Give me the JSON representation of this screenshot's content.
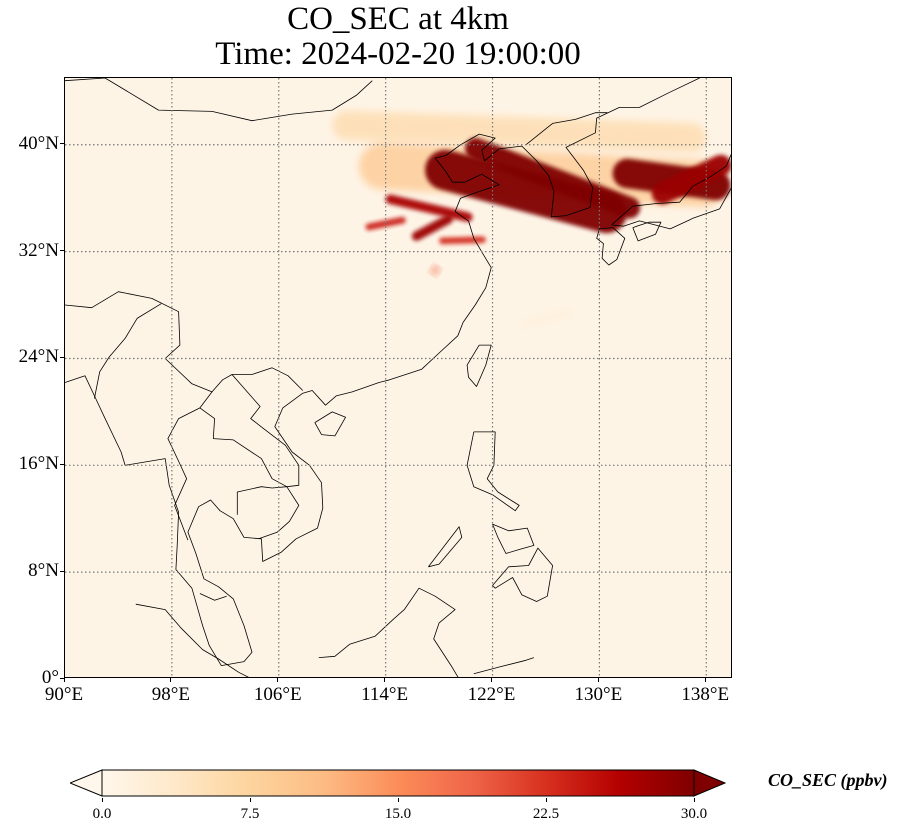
{
  "figure": {
    "title_line1": "CO_SEC at 4km",
    "title_line2": "Time: 2024-02-20 19:00:00"
  },
  "map": {
    "extent": {
      "lon_min": 90,
      "lon_max": 140,
      "lat_min": 0,
      "lat_max": 45
    },
    "gridlines": true,
    "lat_ticks": [
      {
        "value": 0,
        "label": "0°"
      },
      {
        "value": 8,
        "label": "8°N"
      },
      {
        "value": 16,
        "label": "16°N"
      },
      {
        "value": 24,
        "label": "24°N"
      },
      {
        "value": 32,
        "label": "32°N"
      },
      {
        "value": 40,
        "label": "40°N"
      }
    ],
    "lon_ticks": [
      {
        "value": 90,
        "label": "90°E"
      },
      {
        "value": 98,
        "label": "98°E"
      },
      {
        "value": 106,
        "label": "106°E"
      },
      {
        "value": 114,
        "label": "114°E"
      },
      {
        "value": 122,
        "label": "122°E"
      },
      {
        "value": 130,
        "label": "130°E"
      },
      {
        "value": 138,
        "label": "138°E"
      }
    ]
  },
  "colorbar": {
    "label": "CO_SEC (ppbv)",
    "ticks": [
      "0.0",
      "7.5",
      "15.0",
      "22.5",
      "30.0"
    ],
    "min": 0,
    "max": 30,
    "extend": "both",
    "colormap": "OrRd",
    "colors": [
      "#fff7ec",
      "#fee8c8",
      "#fdd49e",
      "#fdbb84",
      "#fc8d59",
      "#ef6548",
      "#d7301f",
      "#b30000",
      "#7f0000"
    ]
  },
  "plumes": [
    {
      "lon1": 110,
      "lat1": 41.5,
      "lon2": 138,
      "lat2": 40.5,
      "width": 2.2,
      "value": 6
    },
    {
      "lon1": 112,
      "lat1": 38.5,
      "lon2": 139.5,
      "lat2": 37,
      "width": 3.5,
      "value": 9
    },
    {
      "lon1": 117,
      "lat1": 38.5,
      "lon2": 132,
      "lat2": 34.5,
      "width": 3.0,
      "value": 30
    },
    {
      "lon1": 120,
      "lat1": 40,
      "lon2": 133,
      "lat2": 35,
      "width": 1.6,
      "value": 30
    },
    {
      "lon1": 131,
      "lat1": 38,
      "lon2": 139.8,
      "lat2": 36.8,
      "width": 2.2,
      "value": 30
    },
    {
      "lon1": 134,
      "lat1": 36,
      "lon2": 139.8,
      "lat2": 38.8,
      "width": 1.6,
      "value": 28
    },
    {
      "lon1": 114,
      "lat1": 36,
      "lon2": 120.5,
      "lat2": 34.5,
      "width": 0.7,
      "value": 27
    },
    {
      "lon1": 112.5,
      "lat1": 33.8,
      "lon2": 115.5,
      "lat2": 34.4,
      "width": 0.5,
      "value": 24
    },
    {
      "lon1": 116,
      "lat1": 33,
      "lon2": 119,
      "lat2": 34.6,
      "width": 0.7,
      "value": 28
    },
    {
      "lon1": 118,
      "lat1": 32.8,
      "lon2": 121.5,
      "lat2": 32.9,
      "width": 0.5,
      "value": 23
    },
    {
      "lon1": 117.5,
      "lat1": 30.3,
      "lon2": 117.9,
      "lat2": 30.9,
      "width": 0.5,
      "value": 18
    },
    {
      "lon1": 124,
      "lat1": 26.5,
      "lon2": 128,
      "lat2": 27.5,
      "width": 0.6,
      "value": 2
    }
  ]
}
